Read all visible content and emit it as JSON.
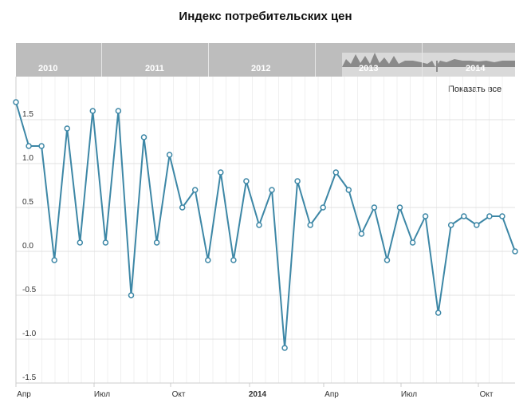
{
  "title": "Индекс потребительских цен",
  "show_all_label": "Показать все",
  "navigator": {
    "years": [
      "2010",
      "2011",
      "2012",
      "2013",
      "2014"
    ]
  },
  "colors": {
    "line": "#3d87a6",
    "grid": "#e0e0e0",
    "minor_grid": "#f0f0f0",
    "navigator_bg": "#bdbdbd",
    "navigator_window": "#d9d9d9",
    "navigator_area": "#8a8a8a"
  },
  "chart_data": {
    "type": "line",
    "title": "Индекс потребительских цен",
    "ylim": [
      -1.5,
      1.7
    ],
    "y_ticks": [
      "1.5",
      "1.0",
      "0.5",
      "0.0",
      "-0.5",
      "-1.0",
      "-1.5"
    ],
    "y_tick_values": [
      1.5,
      1.0,
      0.5,
      0.0,
      -0.5,
      -1.0,
      -1.5
    ],
    "x_ticks": [
      "Апр",
      "Июл",
      "Окт",
      "2014",
      "Апр",
      "Июл",
      "Окт"
    ],
    "grid": true,
    "series": [
      {
        "values": [
          1.7,
          1.2,
          1.2,
          -0.1,
          1.4,
          0.1,
          1.6,
          0.1,
          1.6,
          -0.5,
          1.3,
          0.1,
          1.1,
          0.5,
          0.7,
          -0.1,
          0.9,
          -0.1,
          0.8,
          0.3,
          0.7,
          -1.1,
          0.8,
          0.3,
          0.5,
          0.9,
          0.7,
          0.2,
          0.5,
          -0.1,
          0.5,
          0.1,
          0.4,
          -0.7,
          0.3,
          0.4,
          0.3,
          0.4,
          0.4,
          0.0
        ]
      }
    ]
  }
}
